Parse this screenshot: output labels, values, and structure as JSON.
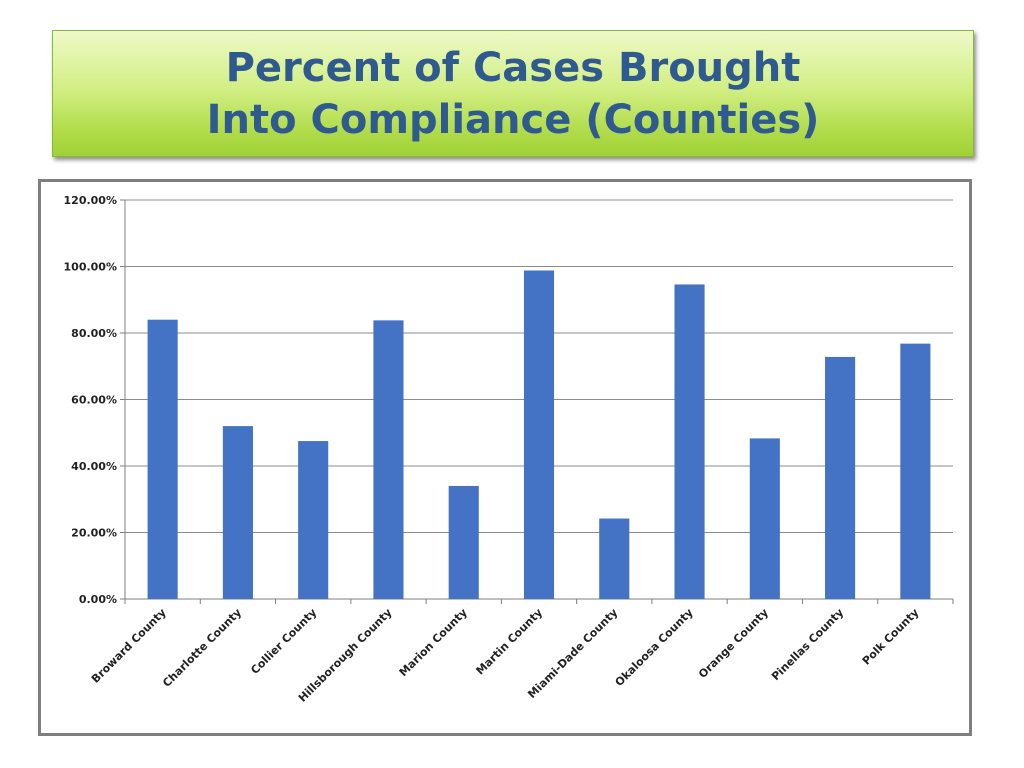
{
  "title": {
    "line1": "Percent of Cases Brought",
    "line2": "Into Compliance (Counties)"
  },
  "colors": {
    "bar": "#4472c4",
    "title_text": "#2e5a8f",
    "banner_green": "#b1dc4a",
    "frame_border": "#7f7f7f",
    "gridline": "#8c8c8c"
  },
  "chart_data": {
    "type": "bar",
    "title": "",
    "xlabel": "",
    "ylabel": "",
    "ylim": [
      0,
      120
    ],
    "yticks": [
      {
        "value": 0,
        "label": "0.00%"
      },
      {
        "value": 20,
        "label": "20.00%"
      },
      {
        "value": 40,
        "label": "40.00%"
      },
      {
        "value": 60,
        "label": "60.00%"
      },
      {
        "value": 80,
        "label": "80.00%"
      },
      {
        "value": 100,
        "label": "100.00%"
      },
      {
        "value": 120,
        "label": "120.00%"
      }
    ],
    "grid": true,
    "legend": "none",
    "categories": [
      "Broward County",
      "Charlotte County",
      "Collier County",
      "Hillsborough County",
      "Marion County",
      "Martin County",
      "Miami-Dade County",
      "Okaloosa County",
      "Orange County",
      "Pinellas County",
      "Polk County"
    ],
    "values": [
      84.0,
      52.0,
      47.5,
      83.8,
      34.0,
      98.8,
      24.2,
      94.6,
      48.3,
      72.8,
      76.8
    ]
  }
}
